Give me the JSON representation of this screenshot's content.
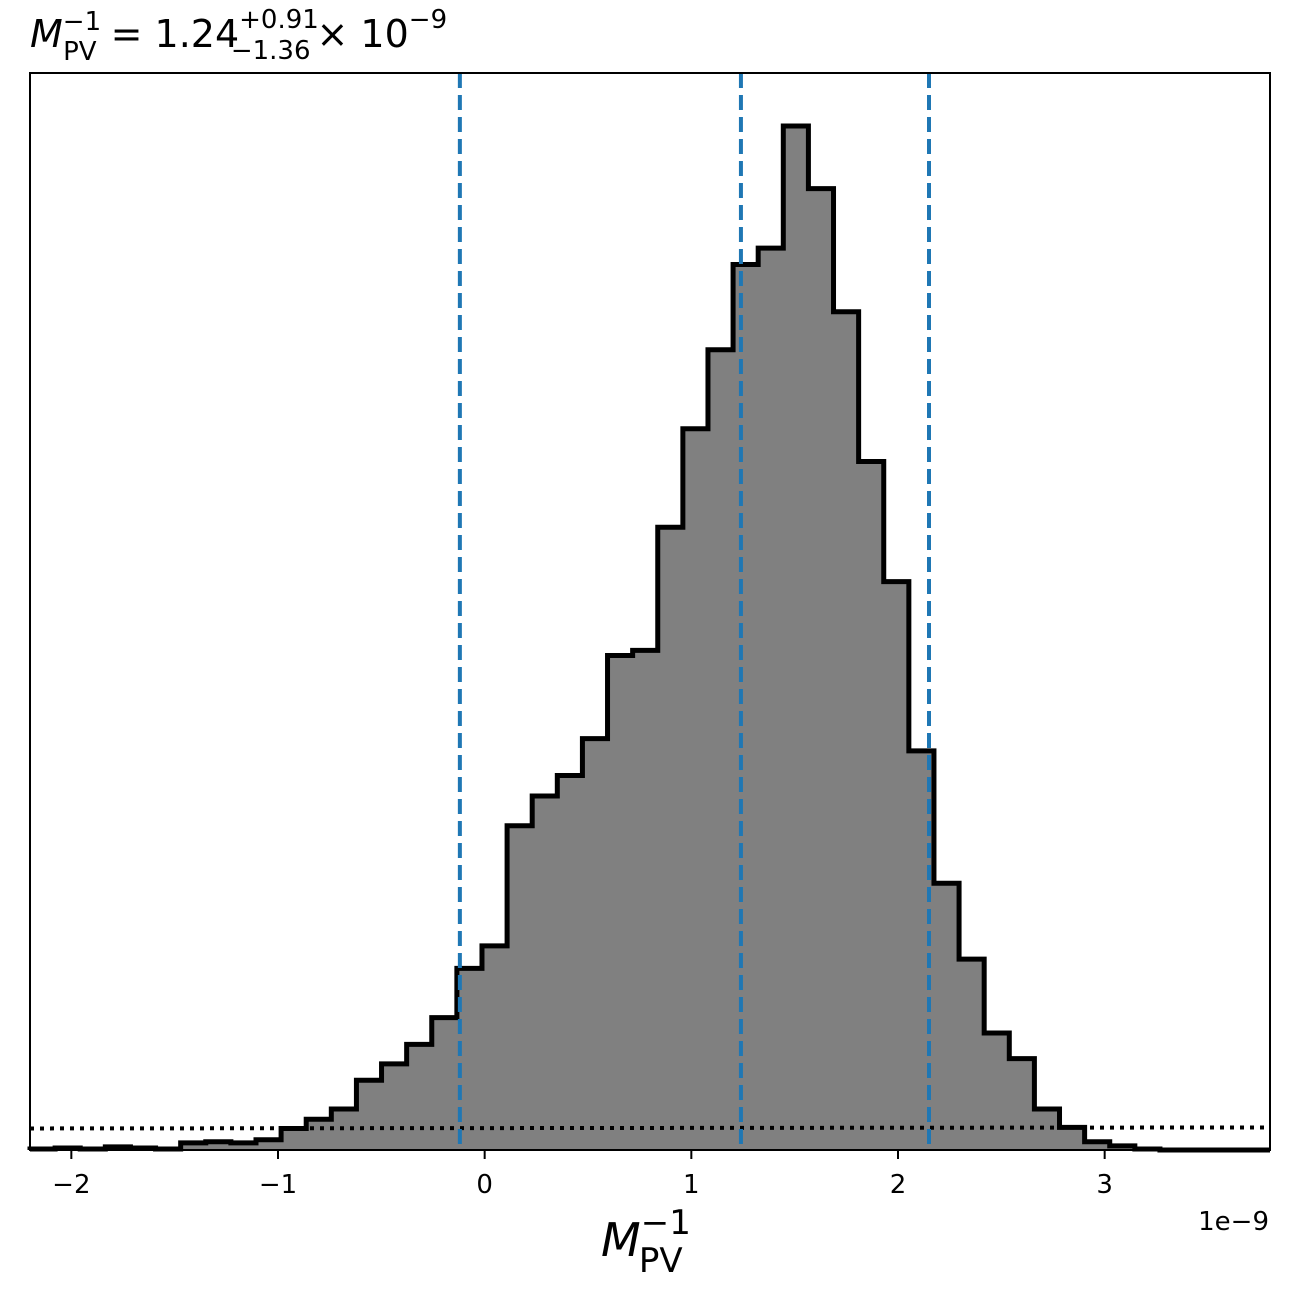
{
  "chart_data": {
    "type": "histogram",
    "title": {
      "symbol": "M",
      "subscript": "PV",
      "superscript": "−1",
      "value": "1.24",
      "upper": "+0.91",
      "lower": "−1.36",
      "times": "× 10",
      "exponent": "−9"
    },
    "xlabel": {
      "symbol": "M",
      "subscript": "PV",
      "superscript": "−1"
    },
    "offset_text": "1e−9",
    "xlim": [
      -2.2,
      3.8
    ],
    "ylim": [
      0,
      1.0
    ],
    "xticks": [
      {
        "value": -2,
        "label": "−2"
      },
      {
        "value": -1,
        "label": "−1"
      },
      {
        "value": 0,
        "label": "0"
      },
      {
        "value": 1,
        "label": "1"
      },
      {
        "value": 2,
        "label": "2"
      },
      {
        "value": 3,
        "label": "3"
      }
    ],
    "bin_start": -2.2,
    "bin_width": 0.1215,
    "counts": [
      0.001,
      0.002,
      0.001,
      0.003,
      0.002,
      0.001,
      0.007,
      0.008,
      0.007,
      0.01,
      0.021,
      0.03,
      0.04,
      0.068,
      0.084,
      0.103,
      0.129,
      0.177,
      0.199,
      0.316,
      0.345,
      0.365,
      0.401,
      0.482,
      0.487,
      0.607,
      0.703,
      0.78,
      0.863,
      0.879,
      0.998,
      0.937,
      0.817,
      0.671,
      0.554,
      0.389,
      0.26,
      0.186,
      0.114,
      0.089,
      0.04,
      0.022,
      0.008,
      0.004,
      0.001,
      0.0,
      0.0,
      0.0,
      0.0,
      0.0
    ],
    "quantile_lines": [
      -0.12,
      1.24,
      2.15
    ],
    "prior_level": 0.021,
    "colors": {
      "fill": "#808080",
      "edge": "#000000",
      "quantile": "#1f77b4",
      "prior": "#000000"
    }
  }
}
